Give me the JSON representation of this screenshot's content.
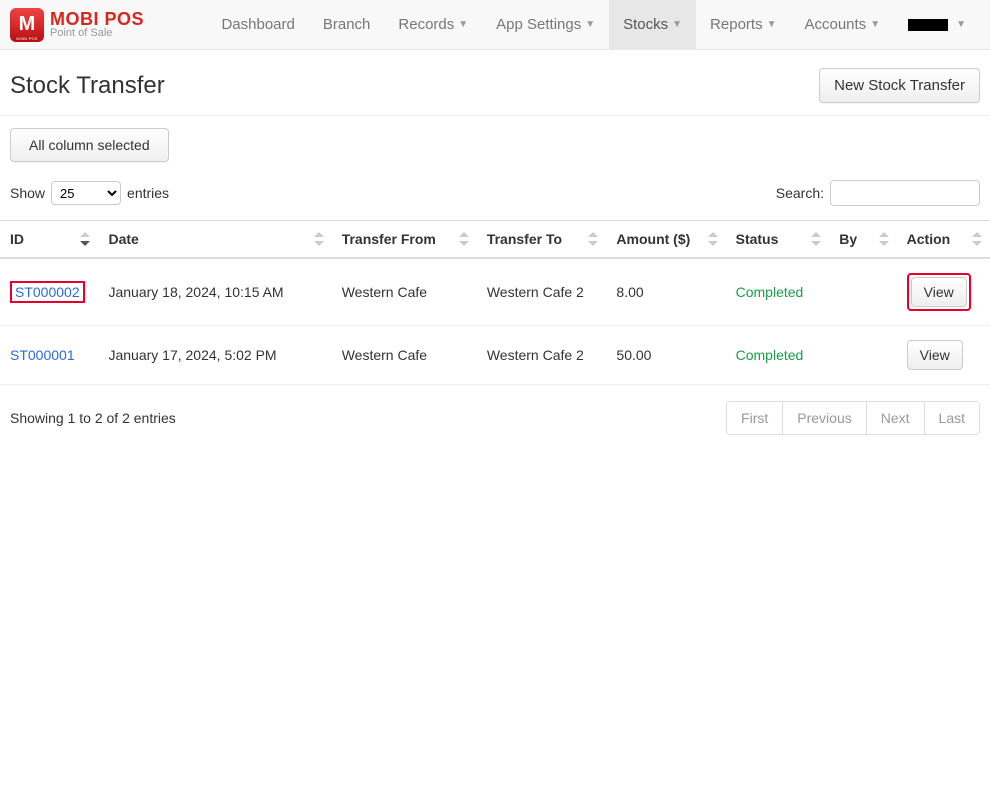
{
  "brand": {
    "name": "MOBI POS",
    "sub": "Point of Sale",
    "logo_letter": "M"
  },
  "nav": {
    "items": [
      {
        "label": "Dashboard",
        "dropdown": false,
        "active": false
      },
      {
        "label": "Branch",
        "dropdown": false,
        "active": false
      },
      {
        "label": "Records",
        "dropdown": true,
        "active": false
      },
      {
        "label": "App Settings",
        "dropdown": true,
        "active": false
      },
      {
        "label": "Stocks",
        "dropdown": true,
        "active": true
      },
      {
        "label": "Reports",
        "dropdown": true,
        "active": false
      },
      {
        "label": "Accounts",
        "dropdown": true,
        "active": false
      }
    ]
  },
  "page": {
    "title": "Stock Transfer",
    "new_button": "New Stock Transfer",
    "col_select_label": "All column selected"
  },
  "datatable": {
    "length_prefix": "Show",
    "length_value": "25",
    "length_suffix": "entries",
    "search_label": "Search:",
    "search_value": "",
    "columns": [
      "ID",
      "Date",
      "Transfer From",
      "Transfer To",
      "Amount ($)",
      "Status",
      "By",
      "Action"
    ],
    "rows": [
      {
        "id": "ST000002",
        "date": "January 18, 2024, 10:15 AM",
        "from": "Western Cafe",
        "to": "Western Cafe 2",
        "amount": "8.00",
        "status": "Completed",
        "by": "",
        "action": "View",
        "highlight": true
      },
      {
        "id": "ST000001",
        "date": "January 17, 2024, 5:02 PM",
        "from": "Western Cafe",
        "to": "Western Cafe 2",
        "amount": "50.00",
        "status": "Completed",
        "by": "",
        "action": "View",
        "highlight": false
      }
    ],
    "info": "Showing 1 to 2 of 2 entries",
    "pagination": [
      "First",
      "Previous",
      "Next",
      "Last"
    ]
  },
  "colors": {
    "link": "#2a6cd6",
    "status_completed": "#1a9e4b",
    "highlight_border": "#e4002b"
  }
}
